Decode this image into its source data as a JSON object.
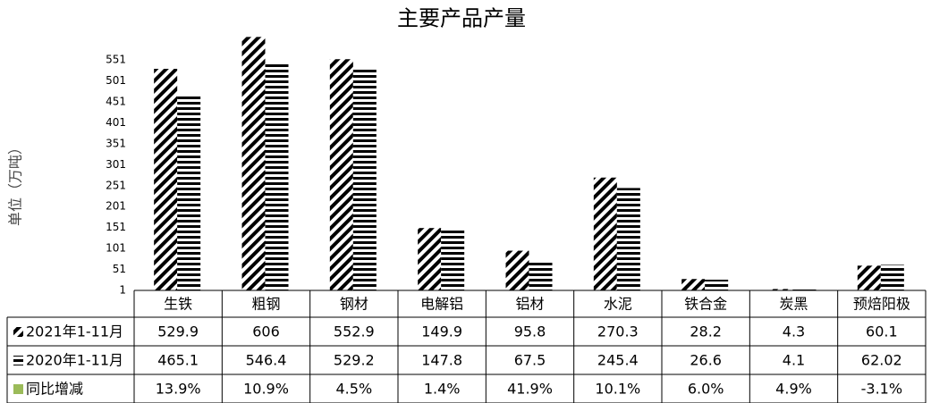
{
  "chart_data": {
    "type": "bar",
    "title": "主要产品产量",
    "y_label": "单位（万吨）",
    "categories": [
      "生铁",
      "粗钢",
      "钢材",
      "电解铝",
      "铝材",
      "水泥",
      "铁合金",
      "炭黑",
      "预焙阳极"
    ],
    "series": [
      {
        "name": "2021年1-11月",
        "color": "#000000",
        "pattern": "diagonal",
        "values": [
          529.9,
          606,
          552.9,
          149.9,
          95.8,
          270.3,
          28.2,
          4.3,
          60.1
        ]
      },
      {
        "name": "2020年1-11月",
        "color": "#000000",
        "pattern": "horizontal",
        "values": [
          465.1,
          546.4,
          529.2,
          147.8,
          67.5,
          245.4,
          26.6,
          4.1,
          62.02
        ]
      },
      {
        "name": "同比增减",
        "color": "#9bbb59",
        "values": [
          13.9,
          10.9,
          4.5,
          1.4,
          41.9,
          10.1,
          6.0,
          4.9,
          -3.1
        ],
        "value_labels": [
          "13.9%",
          "10.9%",
          "4.5%",
          "1.4%",
          "41.9%",
          "10.1%",
          "6.0%",
          "4.9%",
          "-3.1%"
        ]
      }
    ],
    "ylim": [
      1,
      611
    ],
    "yticks": [
      1,
      51,
      101,
      151,
      201,
      251,
      301,
      351,
      401,
      451,
      501,
      551
    ],
    "grid": false
  }
}
